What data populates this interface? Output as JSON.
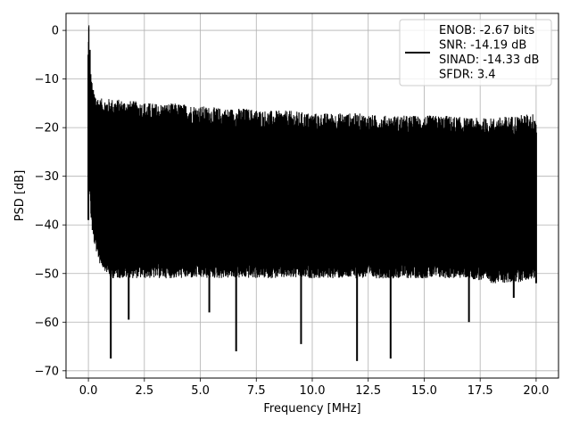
{
  "chart_data": {
    "type": "line",
    "title": "",
    "xlabel": "Frequency [MHz]",
    "ylabel": "PSD [dB]",
    "xlim": [
      -1.0,
      21.0
    ],
    "ylim": [
      -71.5,
      3.5
    ],
    "x_ticks": [
      0.0,
      2.5,
      5.0,
      7.5,
      10.0,
      12.5,
      15.0,
      17.5,
      20.0
    ],
    "x_tick_labels": [
      "0.0",
      "2.5",
      "5.0",
      "7.5",
      "10.0",
      "12.5",
      "15.0",
      "17.5",
      "20.0"
    ],
    "y_ticks": [
      0,
      -10,
      -20,
      -30,
      -40,
      -50,
      -60,
      -70
    ],
    "y_tick_labels": [
      "0",
      "−10",
      "−20",
      "−30",
      "−40",
      "−50",
      "−60",
      "−70"
    ],
    "grid": true,
    "legend_position": "top-right",
    "legend_lines": [
      "ENOB: -2.67 bits",
      "SNR: -14.19 dB",
      "SINAD: -14.33 dB",
      "SFDR: 3.4"
    ],
    "line_color": "#000000",
    "series": [
      {
        "name": "ENOB: -2.67 bits",
        "x": [
          0.0,
          0.02,
          0.04,
          0.06,
          0.08,
          0.1,
          0.15,
          0.2,
          0.3,
          0.4,
          0.5,
          0.6,
          0.7,
          0.8,
          0.9,
          1.0,
          1.2,
          1.4,
          1.6,
          1.8,
          2.0,
          2.3,
          2.6,
          3.0,
          3.4,
          3.8,
          4.2,
          4.6,
          5.0,
          5.4,
          5.8,
          6.2,
          6.6,
          7.0,
          7.5,
          8.0,
          8.5,
          9.0,
          9.5,
          10.0,
          10.5,
          11.0,
          11.5,
          12.0,
          12.5,
          13.0,
          13.5,
          14.0,
          14.5,
          15.0,
          15.5,
          16.0,
          16.5,
          17.0,
          17.5,
          18.0,
          18.5,
          19.0,
          19.5,
          20.0
        ],
        "y": [
          -39,
          0,
          -16,
          -4,
          -18,
          -11,
          -30,
          -35,
          -25,
          -45,
          -28,
          -38,
          -22,
          -43,
          -27,
          -67.5,
          -30,
          -40,
          -24,
          -59.5,
          -33,
          -28,
          -45,
          -36,
          -30,
          -42,
          -26,
          -48,
          -32,
          -58,
          -29,
          -44,
          -66,
          -35,
          -27,
          -50,
          -31,
          -46,
          -64.5,
          -34,
          -28,
          -47,
          -33,
          -68,
          -30,
          -41,
          -67.5,
          -35,
          -29,
          -49,
          -32,
          -45,
          -36,
          -60,
          -28,
          -43,
          -34,
          -55,
          -30,
          -52
        ]
      }
    ],
    "envelope": {
      "x": [
        0.0,
        0.02,
        0.05,
        0.1,
        0.2,
        0.5,
        1.0,
        2.0,
        3.0,
        4.0,
        5.0,
        6.0,
        7.0,
        8.0,
        9.0,
        10.0,
        11.0,
        12.0,
        13.0,
        14.0,
        15.0,
        16.0,
        17.0,
        18.0,
        19.0,
        20.0
      ],
      "upper": [
        -5,
        0,
        -10,
        -12,
        -16,
        -18,
        -18,
        -18.5,
        -19,
        -19,
        -19.5,
        -20,
        -20,
        -20.5,
        -20.5,
        -21,
        -21,
        -21,
        -21.5,
        -21.5,
        -21.5,
        -21.5,
        -22,
        -22,
        -21.5,
        -21
      ],
      "lower": [
        -39,
        -30,
        -30,
        -35,
        -40,
        -45,
        -48,
        -48,
        -48,
        -48,
        -48,
        -48,
        -48,
        -48,
        -48,
        -48,
        -48,
        -48,
        -48,
        -48,
        -48,
        -48,
        -48,
        -49,
        -49,
        -48
      ]
    }
  }
}
